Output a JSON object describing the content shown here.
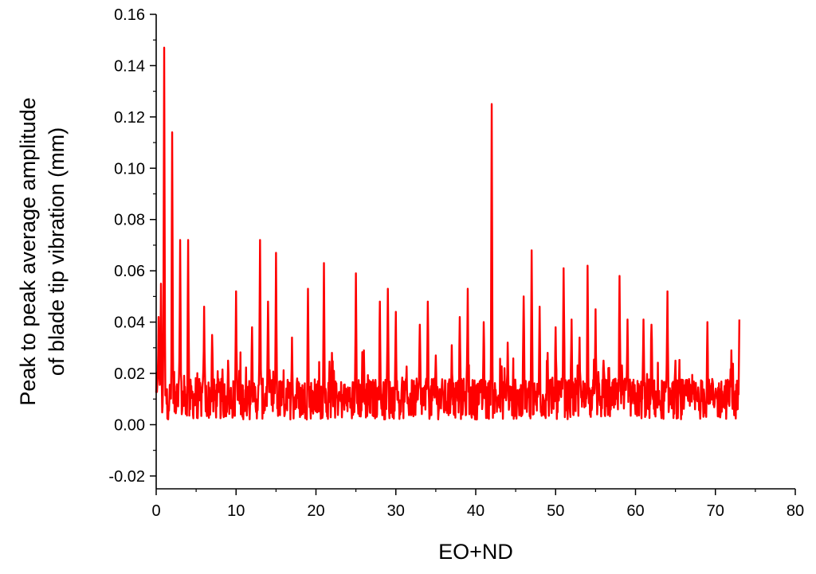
{
  "chart_data": {
    "type": "line",
    "title": "",
    "xlabel": "EO+ND",
    "ylabel_line1": "Peak to peak average amplitude",
    "ylabel_line2": "of blade tip vibration (mm)",
    "xlim": [
      0,
      80
    ],
    "ylim": [
      -0.025,
      0.16
    ],
    "x_ticks": [
      0,
      10,
      20,
      30,
      40,
      50,
      60,
      70,
      80
    ],
    "x_tick_labels": [
      "0",
      "10",
      "20",
      "30",
      "40",
      "50",
      "60",
      "70",
      "80"
    ],
    "y_ticks": [
      -0.02,
      0.0,
      0.02,
      0.04,
      0.06,
      0.08,
      0.1,
      0.12,
      0.14,
      0.16
    ],
    "y_tick_labels": [
      "-0.02",
      "0.00",
      "0.02",
      "0.04",
      "0.06",
      "0.08",
      "0.10",
      "0.12",
      "0.14",
      "0.16"
    ],
    "grid": false,
    "series": [
      {
        "color": "#ff0000",
        "x_start": 0,
        "x_end": 73,
        "baseline_range": [
          0.002,
          0.018
        ],
        "peaks": [
          [
            0.3,
            0.042
          ],
          [
            0.6,
            0.055
          ],
          [
            1.0,
            0.147
          ],
          [
            2.0,
            0.114
          ],
          [
            3.0,
            0.072
          ],
          [
            4.0,
            0.072
          ],
          [
            6.0,
            0.046
          ],
          [
            7.0,
            0.035
          ],
          [
            9.0,
            0.025
          ],
          [
            10.0,
            0.052
          ],
          [
            12.0,
            0.038
          ],
          [
            13.0,
            0.072
          ],
          [
            14.0,
            0.048
          ],
          [
            15.0,
            0.067
          ],
          [
            17.0,
            0.034
          ],
          [
            19.0,
            0.053
          ],
          [
            21.0,
            0.063
          ],
          [
            22.0,
            0.028
          ],
          [
            25.0,
            0.059
          ],
          [
            26.0,
            0.029
          ],
          [
            28.0,
            0.048
          ],
          [
            29.0,
            0.053
          ],
          [
            30.0,
            0.044
          ],
          [
            33.0,
            0.039
          ],
          [
            34.0,
            0.048
          ],
          [
            35.0,
            0.027
          ],
          [
            37.0,
            0.031
          ],
          [
            38.0,
            0.042
          ],
          [
            39.0,
            0.053
          ],
          [
            41.0,
            0.04
          ],
          [
            42.0,
            0.125
          ],
          [
            44.0,
            0.032
          ],
          [
            46.0,
            0.05
          ],
          [
            47.0,
            0.068
          ],
          [
            48.0,
            0.046
          ],
          [
            49.0,
            0.028
          ],
          [
            50.0,
            0.038
          ],
          [
            51.0,
            0.061
          ],
          [
            52.0,
            0.041
          ],
          [
            53.0,
            0.034
          ],
          [
            54.0,
            0.062
          ],
          [
            55.0,
            0.045
          ],
          [
            56.0,
            0.025
          ],
          [
            58.0,
            0.058
          ],
          [
            59.0,
            0.041
          ],
          [
            61.0,
            0.041
          ],
          [
            62.0,
            0.039
          ],
          [
            64.0,
            0.052
          ],
          [
            65.0,
            0.025
          ],
          [
            69.0,
            0.04
          ],
          [
            72.0,
            0.029
          ],
          [
            73.0,
            0.041
          ]
        ]
      }
    ]
  }
}
